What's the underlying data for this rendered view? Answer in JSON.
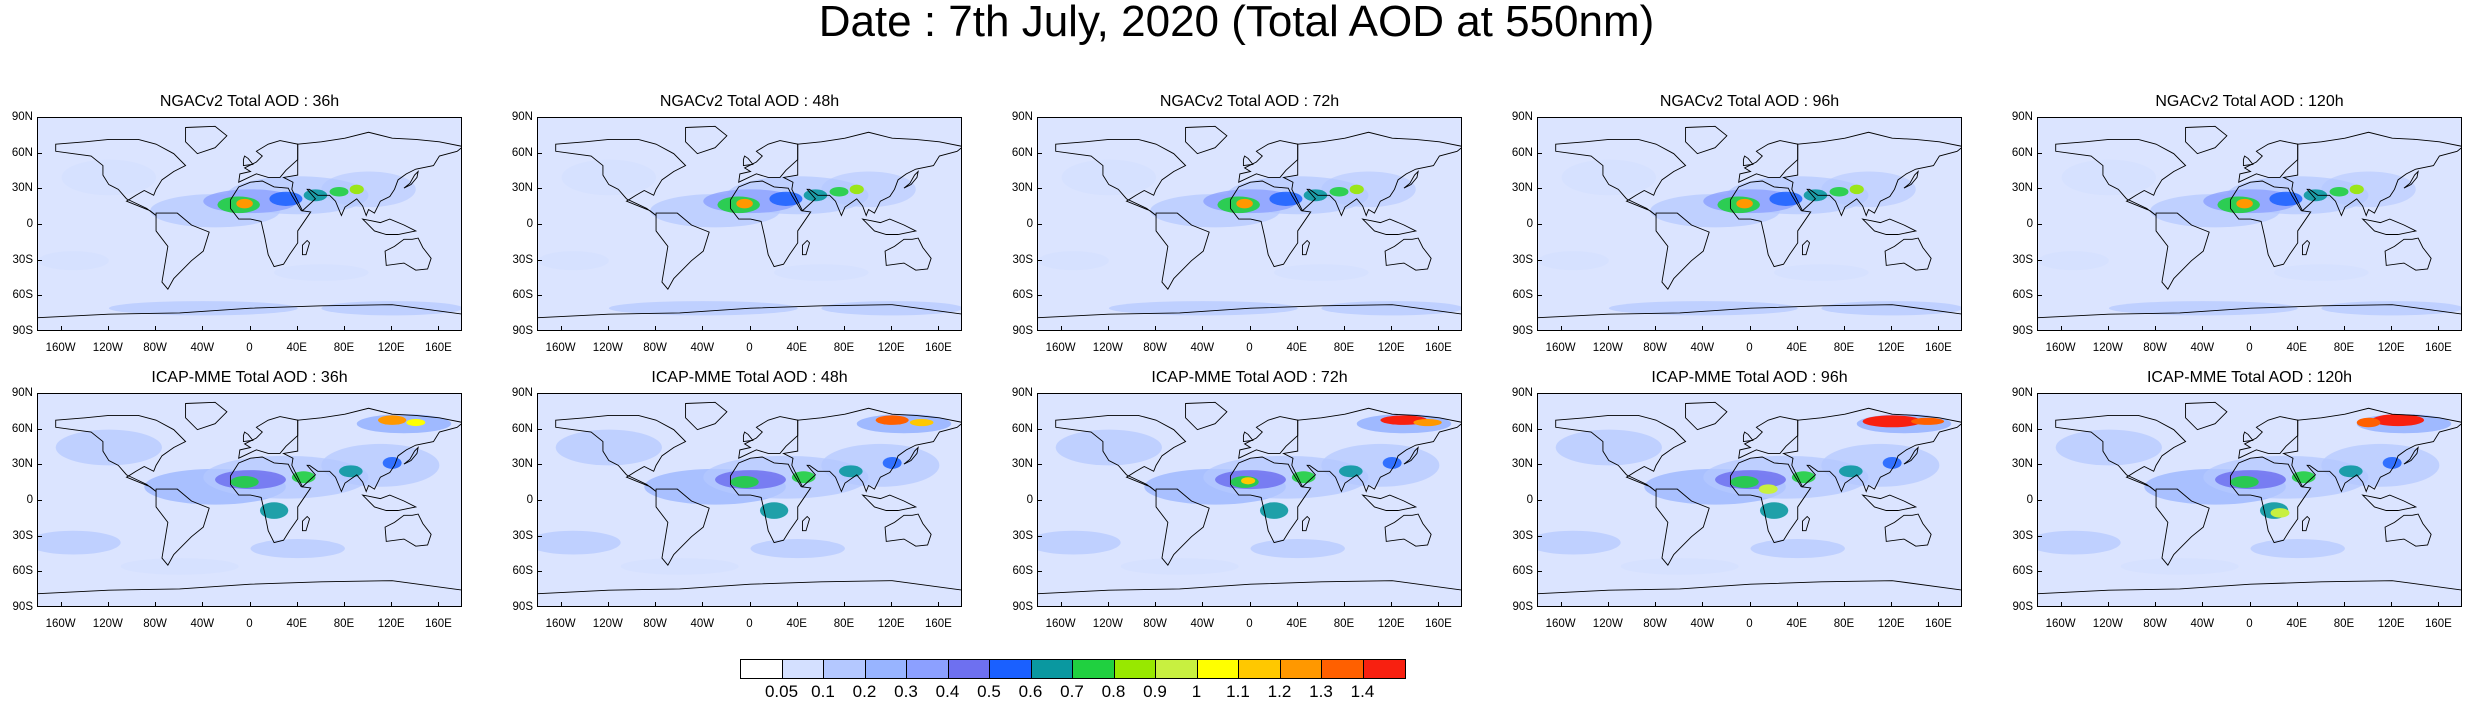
{
  "title": "Date : 7th July, 2020 (Total AOD at 550nm)",
  "panels": [
    {
      "title": "NGACv2 Total AOD : 36h",
      "model": "NGACv2",
      "lead": "36h"
    },
    {
      "title": "NGACv2 Total AOD : 48h",
      "model": "NGACv2",
      "lead": "48h"
    },
    {
      "title": "NGACv2 Total AOD : 72h",
      "model": "NGACv2",
      "lead": "72h"
    },
    {
      "title": "NGACv2 Total AOD : 96h",
      "model": "NGACv2",
      "lead": "96h"
    },
    {
      "title": "NGACv2 Total AOD : 120h",
      "model": "NGACv2",
      "lead": "120h"
    },
    {
      "title": "ICAP-MME Total AOD : 36h",
      "model": "ICAP-MME",
      "lead": "36h"
    },
    {
      "title": "ICAP-MME Total AOD : 48h",
      "model": "ICAP-MME",
      "lead": "48h"
    },
    {
      "title": "ICAP-MME Total AOD : 72h",
      "model": "ICAP-MME",
      "lead": "72h"
    },
    {
      "title": "ICAP-MME Total AOD : 96h",
      "model": "ICAP-MME",
      "lead": "96h"
    },
    {
      "title": "ICAP-MME Total AOD : 120h",
      "model": "ICAP-MME",
      "lead": "120h"
    }
  ],
  "lat_labels": [
    "90N",
    "60N",
    "30N",
    "0",
    "30S",
    "60S",
    "90S"
  ],
  "lon_labels": [
    "160W",
    "120W",
    "80W",
    "40W",
    "0",
    "40E",
    "80E",
    "120E",
    "160E"
  ],
  "colorbar": {
    "levels": [
      "0.05",
      "0.1",
      "0.2",
      "0.3",
      "0.4",
      "0.5",
      "0.6",
      "0.7",
      "0.8",
      "0.9",
      "1",
      "1.1",
      "1.2",
      "1.3",
      "1.4"
    ],
    "colors": [
      "#ffffff",
      "#d4e0ff",
      "#b4c8ff",
      "#98b4ff",
      "#8ca0ff",
      "#6e70f0",
      "#1a60ff",
      "#0a98a0",
      "#20d040",
      "#98e800",
      "#c8f040",
      "#ffff00",
      "#ffc800",
      "#ff9800",
      "#ff6000",
      "#f82010"
    ]
  },
  "colors": {
    "background": "#ffffff",
    "ocean_base": "#dbe4ff",
    "dust_core": "#ff2a10"
  }
}
